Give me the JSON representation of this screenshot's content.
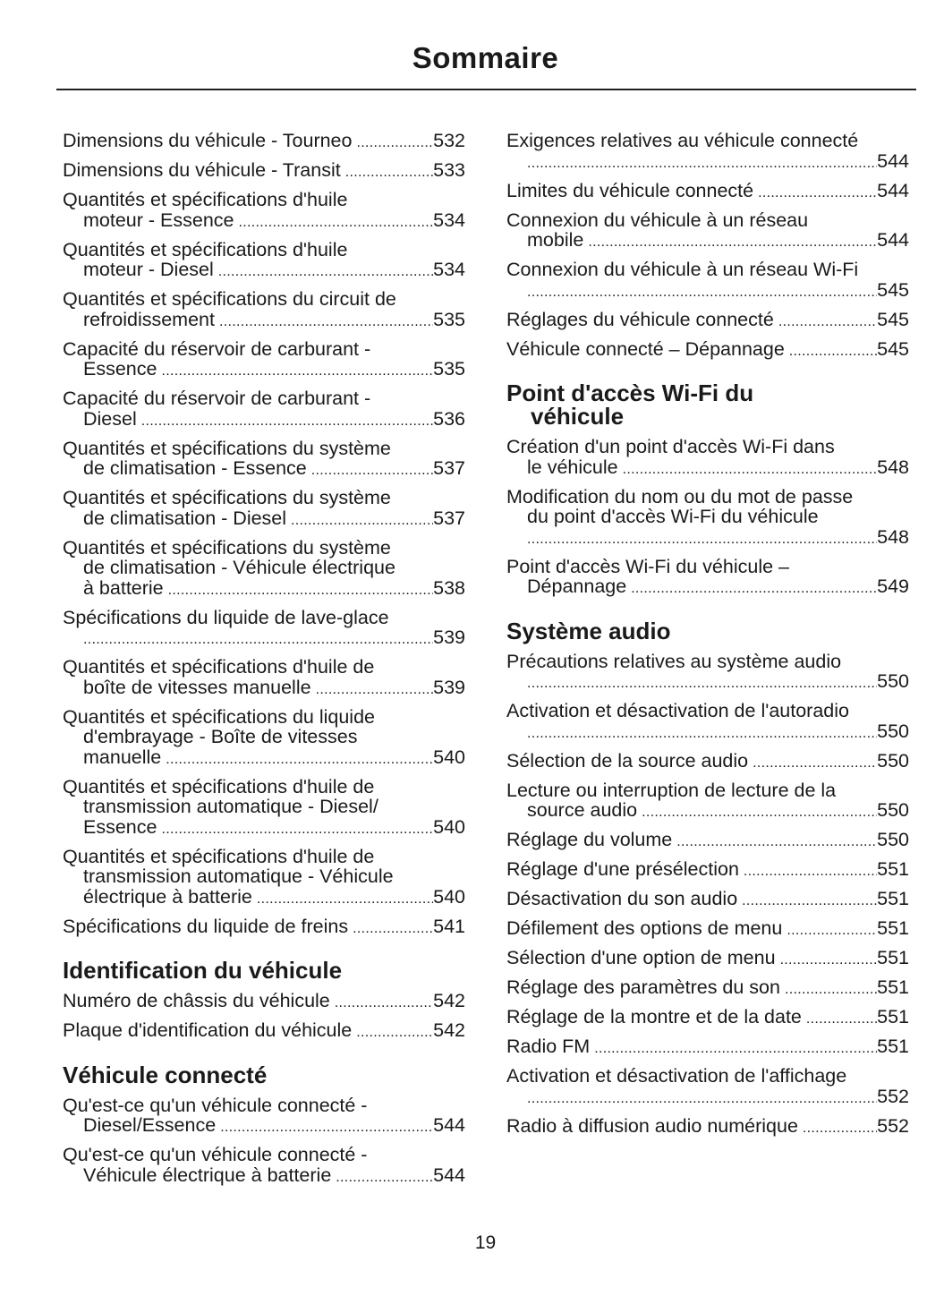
{
  "title": "Sommaire",
  "page_number": "19",
  "left": [
    {
      "type": "entry",
      "lines": [
        "Dimensions du véhicule - Tourneo"
      ],
      "page": "532"
    },
    {
      "type": "entry",
      "lines": [
        "Dimensions du véhicule - Transit"
      ],
      "page": "533"
    },
    {
      "type": "entry",
      "lines": [
        "Quantités et spécifications d'huile",
        "moteur - Essence"
      ],
      "page": "534"
    },
    {
      "type": "entry",
      "lines": [
        "Quantités et spécifications d'huile",
        "moteur - Diesel"
      ],
      "page": "534"
    },
    {
      "type": "entry",
      "lines": [
        "Quantités et spécifications du circuit de",
        "refroidissement"
      ],
      "page": "535"
    },
    {
      "type": "entry",
      "lines": [
        "Capacité du réservoir de carburant -",
        "Essence"
      ],
      "page": "535"
    },
    {
      "type": "entry",
      "lines": [
        "Capacité du réservoir de carburant -",
        "Diesel"
      ],
      "page": "536"
    },
    {
      "type": "entry",
      "lines": [
        "Quantités et spécifications du système",
        "de climatisation - Essence"
      ],
      "page": "537"
    },
    {
      "type": "entry",
      "lines": [
        "Quantités et spécifications du système",
        "de climatisation - Diesel"
      ],
      "page": "537"
    },
    {
      "type": "entry",
      "lines": [
        "Quantités et spécifications du système",
        "de climatisation - Véhicule électrique",
        "à batterie"
      ],
      "page": "538"
    },
    {
      "type": "entry",
      "lines": [
        "Spécifications du liquide de lave-glace",
        ""
      ],
      "page": "539"
    },
    {
      "type": "entry",
      "lines": [
        "Quantités et spécifications d'huile de",
        "boîte de vitesses manuelle"
      ],
      "page": "539"
    },
    {
      "type": "entry",
      "lines": [
        "Quantités et spécifications du liquide",
        "d'embrayage - Boîte de vitesses",
        "manuelle"
      ],
      "page": "540"
    },
    {
      "type": "entry",
      "lines": [
        "Quantités et spécifications d'huile de",
        "transmission automatique - Diesel/",
        "Essence"
      ],
      "page": "540"
    },
    {
      "type": "entry",
      "lines": [
        "Quantités et spécifications d'huile de",
        "transmission automatique - Véhicule",
        "électrique à batterie"
      ],
      "page": "540"
    },
    {
      "type": "entry",
      "lines": [
        "Spécifications du liquide de freins"
      ],
      "page": "541"
    },
    {
      "type": "heading",
      "lines": [
        "Identification du véhicule"
      ]
    },
    {
      "type": "entry",
      "lines": [
        "Numéro de châssis du véhicule"
      ],
      "page": "542"
    },
    {
      "type": "entry",
      "lines": [
        "Plaque d'identification du véhicule"
      ],
      "page": "542"
    },
    {
      "type": "heading",
      "lines": [
        "Véhicule connecté"
      ]
    },
    {
      "type": "entry",
      "lines": [
        "Qu'est-ce qu'un véhicule connecté -",
        "Diesel/Essence"
      ],
      "page": "544"
    },
    {
      "type": "entry",
      "lines": [
        "Qu'est-ce qu'un véhicule connecté -",
        "Véhicule électrique à batterie"
      ],
      "page": "544"
    }
  ],
  "right": [
    {
      "type": "entry",
      "lines": [
        "Exigences relatives au véhicule connecté",
        ""
      ],
      "page": "544"
    },
    {
      "type": "entry",
      "lines": [
        "Limites du véhicule connecté"
      ],
      "page": "544"
    },
    {
      "type": "entry",
      "lines": [
        "Connexion du véhicule à un réseau",
        "mobile"
      ],
      "page": "544"
    },
    {
      "type": "entry",
      "lines": [
        "Connexion du véhicule à un réseau Wi-Fi",
        ""
      ],
      "page": "545"
    },
    {
      "type": "entry",
      "lines": [
        "Réglages du véhicule connecté"
      ],
      "page": "545"
    },
    {
      "type": "entry",
      "lines": [
        "Véhicule connecté – Dépannage"
      ],
      "page": "545"
    },
    {
      "type": "heading",
      "lines": [
        "Point d'accès Wi-Fi du",
        "véhicule"
      ]
    },
    {
      "type": "entry",
      "lines": [
        "Création d'un point d'accès Wi-Fi dans",
        "le véhicule"
      ],
      "page": "548"
    },
    {
      "type": "entry",
      "lines": [
        "Modification du nom ou du mot de passe",
        "du point d'accès Wi-Fi du véhicule",
        ""
      ],
      "page": "548"
    },
    {
      "type": "entry",
      "lines": [
        "Point d'accès Wi-Fi du véhicule –",
        "Dépannage"
      ],
      "page": "549"
    },
    {
      "type": "heading",
      "lines": [
        "Système audio"
      ]
    },
    {
      "type": "entry",
      "lines": [
        "Précautions relatives au système audio",
        ""
      ],
      "page": "550"
    },
    {
      "type": "entry",
      "lines": [
        "Activation et désactivation de l'autoradio",
        ""
      ],
      "page": "550"
    },
    {
      "type": "entry",
      "lines": [
        "Sélection de la source audio"
      ],
      "page": "550"
    },
    {
      "type": "entry",
      "lines": [
        "Lecture ou interruption de lecture de la",
        "source audio"
      ],
      "page": "550"
    },
    {
      "type": "entry",
      "lines": [
        "Réglage du volume"
      ],
      "page": "550"
    },
    {
      "type": "entry",
      "lines": [
        "Réglage d'une présélection"
      ],
      "page": "551"
    },
    {
      "type": "entry",
      "lines": [
        "Désactivation du son audio"
      ],
      "page": "551"
    },
    {
      "type": "entry",
      "lines": [
        "Défilement des options de menu"
      ],
      "page": "551"
    },
    {
      "type": "entry",
      "lines": [
        "Sélection d'une option de menu"
      ],
      "page": "551"
    },
    {
      "type": "entry",
      "lines": [
        "Réglage des paramètres du son"
      ],
      "page": "551"
    },
    {
      "type": "entry",
      "lines": [
        "Réglage de la montre et de la date"
      ],
      "page": "551"
    },
    {
      "type": "entry",
      "lines": [
        "Radio FM"
      ],
      "page": "551"
    },
    {
      "type": "entry",
      "lines": [
        "Activation et désactivation de l'affichage",
        ""
      ],
      "page": "552"
    },
    {
      "type": "entry",
      "lines": [
        "Radio à diffusion audio numérique"
      ],
      "page": "552"
    }
  ]
}
